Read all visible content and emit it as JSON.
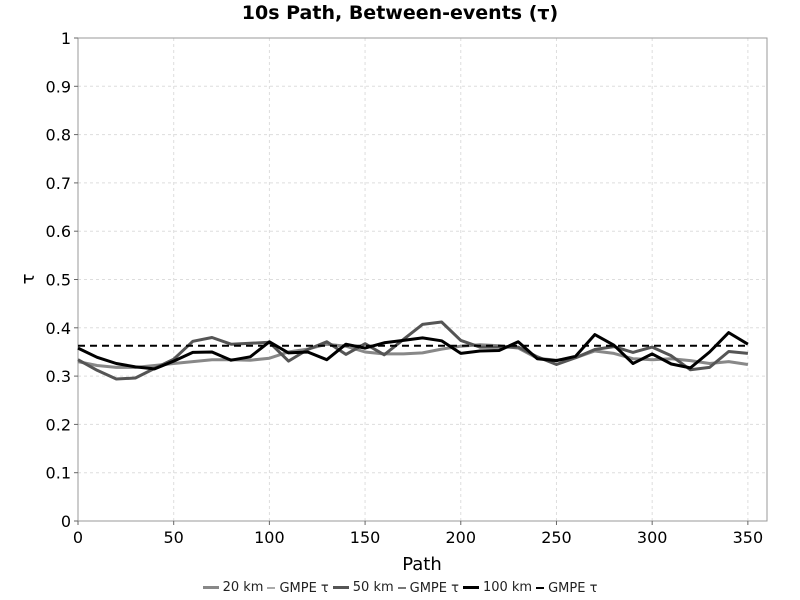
{
  "chart_data": {
    "type": "line",
    "title": "10s Path, Between-events (τ)",
    "xlabel": "Path",
    "ylabel": "τ",
    "xlim": [
      0,
      360
    ],
    "ylim": [
      0,
      1
    ],
    "x_ticks": [
      "0",
      "50",
      "100",
      "150",
      "200",
      "250",
      "300",
      "350"
    ],
    "y_ticks": [
      "0",
      "0.1",
      "0.2",
      "0.3",
      "0.4",
      "0.5",
      "0.6",
      "0.7",
      "0.8",
      "0.9",
      "1"
    ],
    "grid": true,
    "legend_position": "bottom",
    "x": [
      0,
      10,
      20,
      30,
      40,
      50,
      60,
      70,
      80,
      90,
      100,
      110,
      120,
      130,
      140,
      150,
      160,
      170,
      180,
      190,
      200,
      210,
      220,
      230,
      240,
      250,
      260,
      270,
      280,
      290,
      300,
      310,
      320,
      330,
      340,
      350
    ],
    "series": [
      {
        "name": "20 km",
        "color": "#888888",
        "width": 3,
        "dash": "",
        "values": [
          0.33,
          0.322,
          0.318,
          0.318,
          0.322,
          0.326,
          0.33,
          0.334,
          0.334,
          0.333,
          0.337,
          0.35,
          0.356,
          0.366,
          0.362,
          0.35,
          0.346,
          0.346,
          0.348,
          0.356,
          0.362,
          0.365,
          0.363,
          0.358,
          0.337,
          0.333,
          0.338,
          0.352,
          0.347,
          0.336,
          0.334,
          0.336,
          0.332,
          0.326,
          0.33,
          0.324
        ]
      },
      {
        "name": "50 km",
        "color": "#555555",
        "width": 3,
        "dash": "",
        "values": [
          0.334,
          0.312,
          0.294,
          0.296,
          0.316,
          0.335,
          0.372,
          0.38,
          0.366,
          0.368,
          0.37,
          0.331,
          0.355,
          0.371,
          0.345,
          0.367,
          0.344,
          0.376,
          0.407,
          0.412,
          0.374,
          0.36,
          0.36,
          0.36,
          0.34,
          0.324,
          0.338,
          0.355,
          0.361,
          0.349,
          0.36,
          0.342,
          0.313,
          0.318,
          0.351,
          0.347
        ]
      },
      {
        "name": "100 km",
        "color": "#000000",
        "width": 3,
        "dash": "",
        "values": [
          0.358,
          0.339,
          0.326,
          0.319,
          0.315,
          0.331,
          0.349,
          0.35,
          0.333,
          0.34,
          0.371,
          0.348,
          0.35,
          0.334,
          0.366,
          0.358,
          0.369,
          0.374,
          0.379,
          0.373,
          0.347,
          0.352,
          0.353,
          0.371,
          0.336,
          0.332,
          0.341,
          0.386,
          0.364,
          0.326,
          0.346,
          0.325,
          0.317,
          0.35,
          0.39,
          0.366
        ]
      },
      {
        "name": "GMPE τ",
        "color": "#000000",
        "width": 2,
        "dash": "7,5",
        "values": [
          0.363,
          0.363,
          0.363,
          0.363,
          0.363,
          0.363,
          0.363,
          0.363,
          0.363,
          0.363,
          0.363,
          0.363,
          0.363,
          0.363,
          0.363,
          0.363,
          0.363,
          0.363,
          0.363,
          0.363,
          0.363,
          0.363,
          0.363,
          0.363,
          0.363,
          0.363,
          0.363,
          0.363,
          0.363,
          0.363,
          0.363,
          0.363,
          0.363,
          0.363,
          0.363,
          0.363
        ]
      }
    ],
    "legend": [
      {
        "label": "20 km",
        "color": "#888888",
        "style": "solid"
      },
      {
        "label": "GMPE τ",
        "color": "#aaaaaa",
        "style": "dash"
      },
      {
        "label": "50 km",
        "color": "#555555",
        "style": "solid"
      },
      {
        "label": "GMPE τ",
        "color": "#777777",
        "style": "dash"
      },
      {
        "label": "100 km",
        "color": "#000000",
        "style": "solid"
      },
      {
        "label": "GMPE τ",
        "color": "#000000",
        "style": "dash"
      }
    ]
  }
}
